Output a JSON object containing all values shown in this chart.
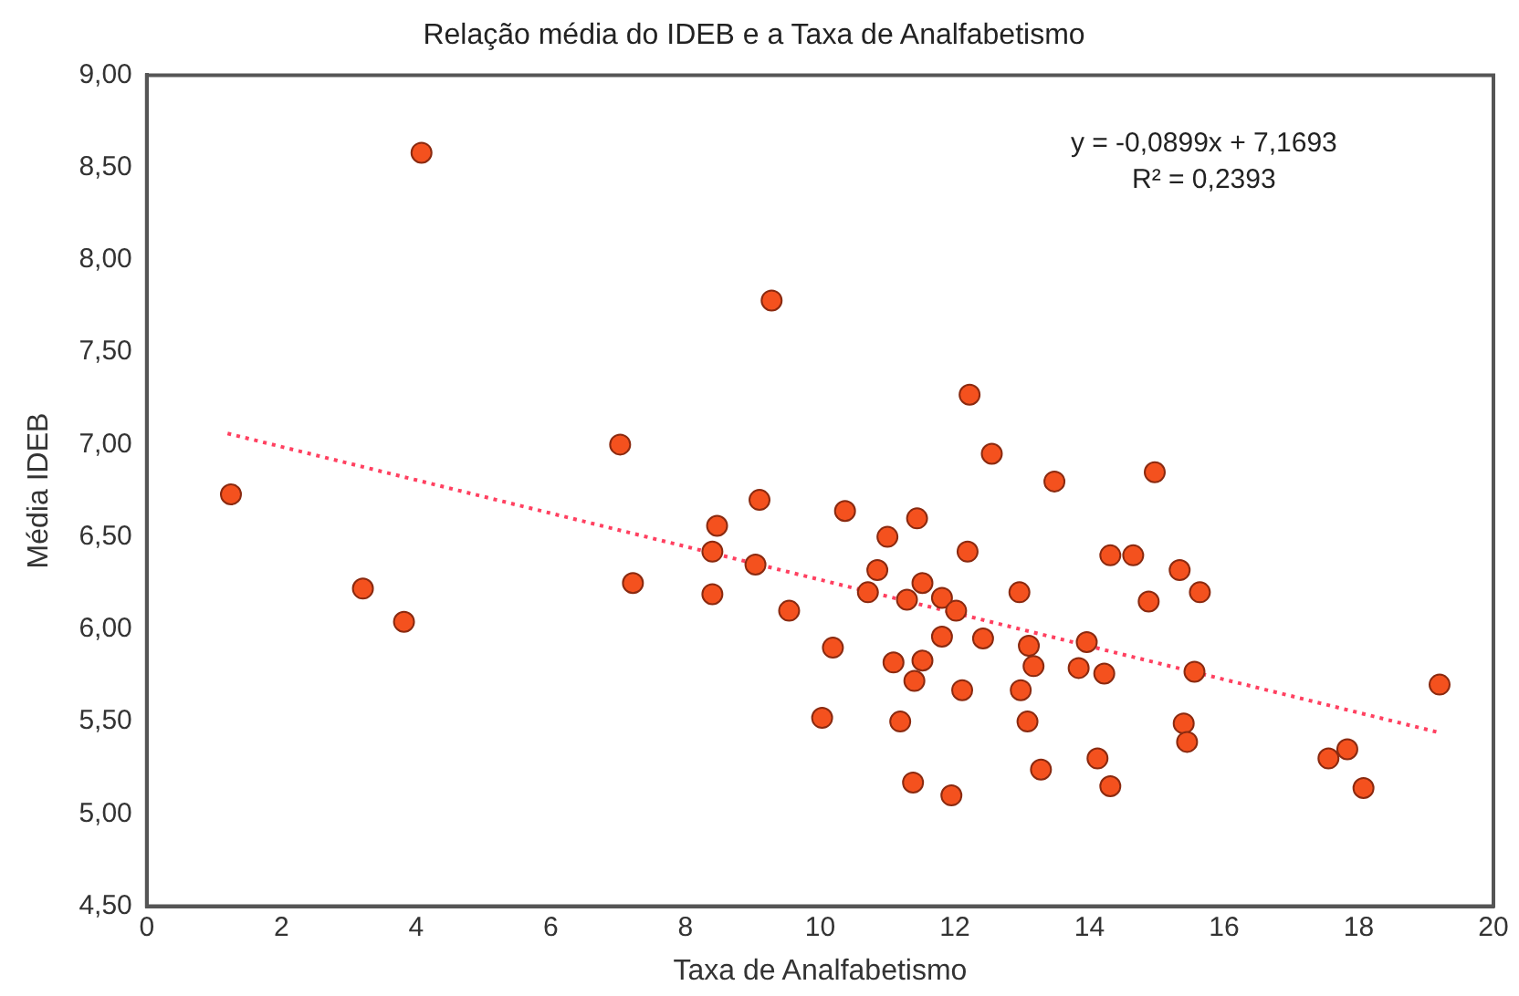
{
  "chart_data": {
    "type": "scatter",
    "title": "Relação média do IDEB e a Taxa de Analfabetismo",
    "xlabel": "Taxa de Analfabetismo",
    "ylabel": "Média IDEB",
    "xlim": [
      0,
      20
    ],
    "xticks": [
      0,
      2,
      4,
      6,
      8,
      10,
      12,
      14,
      16,
      18,
      20
    ],
    "ylim": [
      4.5,
      9
    ],
    "yticks": [
      {
        "value": 4.5,
        "label": "4,50"
      },
      {
        "value": 5,
        "label": "5,00"
      },
      {
        "value": 5.5,
        "label": "5,50"
      },
      {
        "value": 6,
        "label": "6,00"
      },
      {
        "value": 6.5,
        "label": "6,50"
      },
      {
        "value": 7,
        "label": "7,00"
      },
      {
        "value": 7.5,
        "label": "7,50"
      },
      {
        "value": 8,
        "label": "8,00"
      },
      {
        "value": 8.5,
        "label": "8,50"
      },
      {
        "value": 9,
        "label": "9,00"
      }
    ],
    "grid": false,
    "legend": false,
    "marker": "circle",
    "annotations": [
      "y = -0,0899x + 7,1693",
      "R² = 0,2393"
    ],
    "series": [
      {
        "color": "#f4511e",
        "x": [
          4.08,
          9.28,
          7.03,
          1.25,
          9.1,
          8.47,
          8.4,
          9.04,
          7.22,
          8.4,
          3.21,
          3.82,
          12.22,
          12.55,
          13.48,
          14.97,
          10.37,
          11.44,
          11.0,
          12.19,
          10.85,
          14.31,
          14.65,
          15.34,
          10.71,
          11.29,
          11.52,
          11.81,
          12.02,
          12.96,
          14.88,
          9.54,
          11.81,
          12.42,
          13.1,
          13.96,
          10.19,
          11.09,
          11.52,
          11.4,
          12.11,
          13.17,
          12.98,
          13.84,
          14.22,
          10.03,
          11.19,
          13.08,
          11.38,
          11.95,
          13.28,
          14.12,
          14.31,
          15.64,
          15.56,
          15.4,
          15.45,
          17.55,
          17.83,
          18.07,
          19.2
        ],
        "values": [
          8.58,
          7.78,
          7.0,
          6.73,
          6.7,
          6.56,
          6.42,
          6.35,
          6.25,
          6.19,
          6.22,
          6.04,
          7.27,
          6.95,
          6.8,
          6.85,
          6.64,
          6.6,
          6.5,
          6.42,
          6.32,
          6.4,
          6.4,
          6.32,
          6.2,
          6.16,
          6.25,
          6.17,
          6.1,
          6.2,
          6.15,
          6.1,
          5.96,
          5.95,
          5.91,
          5.93,
          5.9,
          5.82,
          5.83,
          5.72,
          5.67,
          5.8,
          5.67,
          5.79,
          5.76,
          5.52,
          5.5,
          5.5,
          5.17,
          5.1,
          5.24,
          5.3,
          5.15,
          6.2,
          5.77,
          5.49,
          5.39,
          5.3,
          5.35,
          5.14,
          5.7
        ]
      },
      {
        "type": "line",
        "color": "#ff4060",
        "marker": "none",
        "line_style": "dotted",
        "x": [
          1.2,
          19.2
        ],
        "values": [
          7.06,
          5.44
        ]
      }
    ]
  }
}
